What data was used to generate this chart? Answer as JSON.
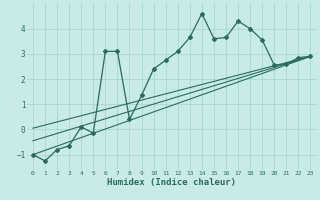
{
  "xlabel": "Humidex (Indice chaleur)",
  "ylabel": "",
  "background_color": "#c8ebe6",
  "grid_color": "#a8d8d0",
  "line_color": "#2a6b5e",
  "xlim": [
    -0.5,
    23.5
  ],
  "ylim": [
    -1.6,
    5.0
  ],
  "yticks": [
    -1,
    0,
    1,
    2,
    3,
    4
  ],
  "xticks": [
    0,
    1,
    2,
    3,
    4,
    5,
    6,
    7,
    8,
    9,
    10,
    11,
    12,
    13,
    14,
    15,
    16,
    17,
    18,
    19,
    20,
    21,
    22,
    23
  ],
  "series": [
    {
      "x": [
        0,
        1,
        2,
        3,
        4,
        5,
        6,
        7,
        8,
        9,
        10,
        11,
        12,
        13,
        14,
        15,
        16,
        17,
        18,
        19,
        20,
        21,
        22,
        23
      ],
      "y": [
        -1.0,
        -1.25,
        -0.8,
        -0.65,
        0.1,
        -0.15,
        3.1,
        3.1,
        0.4,
        1.35,
        2.4,
        2.75,
        3.1,
        3.65,
        4.6,
        3.6,
        3.65,
        4.3,
        4.0,
        3.55,
        2.55,
        2.6,
        2.85,
        2.9
      ]
    },
    {
      "x": [
        0,
        23
      ],
      "y": [
        -1.0,
        2.9
      ]
    },
    {
      "x": [
        0,
        23
      ],
      "y": [
        -0.45,
        2.9
      ]
    },
    {
      "x": [
        0,
        23
      ],
      "y": [
        0.05,
        2.9
      ]
    }
  ]
}
